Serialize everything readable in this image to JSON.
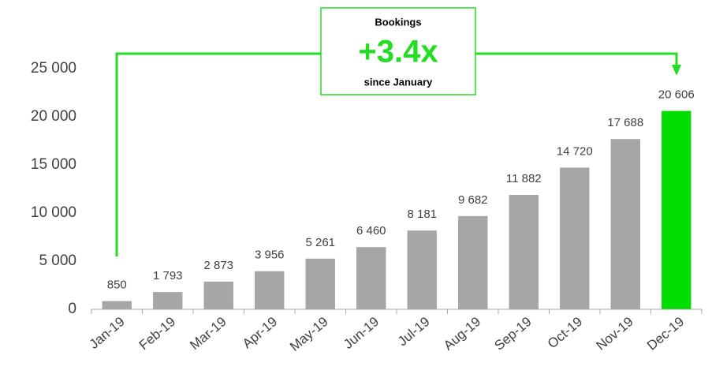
{
  "chart_data": {
    "type": "bar",
    "categories": [
      "Jan-19",
      "Feb-19",
      "Mar-19",
      "Apr-19",
      "May-19",
      "Jun-19",
      "Jul-19",
      "Aug-19",
      "Sep-19",
      "Oct-19",
      "Nov-19",
      "Dec-19"
    ],
    "values": [
      850,
      1793,
      2873,
      3956,
      5261,
      6460,
      8181,
      9682,
      11882,
      14720,
      17688,
      20606
    ],
    "value_labels": [
      "850",
      "1 793",
      "2 873",
      "3 956",
      "5 261",
      "6 460",
      "8 181",
      "9 682",
      "11 882",
      "14 720",
      "17 688",
      "20 606"
    ],
    "colors": [
      "#a6a6a6",
      "#a6a6a6",
      "#a6a6a6",
      "#a6a6a6",
      "#a6a6a6",
      "#a6a6a6",
      "#a6a6a6",
      "#a6a6a6",
      "#a6a6a6",
      "#a6a6a6",
      "#a6a6a6",
      "#00dd00"
    ],
    "ylim": [
      0,
      25000
    ],
    "yticks": [
      0,
      {
        "value": 5000,
        "label": "5 000"
      },
      {
        "value": 10000,
        "label": "10 000"
      },
      {
        "value": 15000,
        "label": "15 000"
      },
      {
        "value": 20000,
        "label": "20 000"
      },
      {
        "value": 25000,
        "label": "25 000"
      }
    ],
    "grid": false,
    "annotation": {
      "title": "Bookings",
      "value": "+3.4x",
      "subtitle": "since January"
    }
  }
}
